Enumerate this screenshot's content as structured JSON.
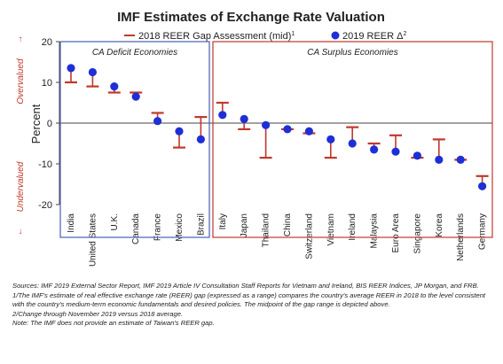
{
  "chart_data": {
    "type": "error-bar-scatter",
    "title": "IMF Estimates of Exchange Rate Valuation",
    "ylabel": "Percent",
    "ylim": [
      -20,
      20
    ],
    "yticks": [
      20,
      10,
      0,
      -10,
      -20
    ],
    "upper_side_label": "Overvalued",
    "lower_side_label": "Undervalued",
    "legend": {
      "gap_label": "2018 REER Gap Assessment (mid)",
      "gap_label_sup": "1",
      "reer_label": "2019 REER Δ",
      "reer_label_sup": "2"
    },
    "groups": [
      {
        "name": "CA Deficit Economies",
        "start": 0,
        "end": 6
      },
      {
        "name": "CA Surplus Economies",
        "start": 7,
        "end": 19
      }
    ],
    "categories": [
      "India",
      "United States",
      "U.K.",
      "Canada",
      "France",
      "Mexico",
      "Brazil",
      "Italy",
      "Japan",
      "Thailand",
      "China",
      "Switzerland",
      "Vietnam",
      "Ireland",
      "Malaysia",
      "Euro Area",
      "Singapore",
      "Korea",
      "Netherlands",
      "Germany"
    ],
    "gap_mid": [
      10,
      9,
      7.5,
      7.5,
      2.5,
      -6,
      1.5,
      5,
      -1.5,
      -8.5,
      -1.5,
      -2.5,
      -8.5,
      -1,
      -5,
      -3,
      -8.5,
      -4,
      -9,
      -13
    ],
    "reer_2019": [
      13.5,
      12.5,
      9,
      6.5,
      0.5,
      -2,
      -4,
      2,
      1,
      -0.5,
      -1.5,
      -2,
      -4,
      -5,
      -6.5,
      -7,
      -8,
      -9,
      -9,
      -15.5
    ]
  },
  "colors": {
    "gap": "#c0392b",
    "reer": "#1f2fd6",
    "deficit_box": "#4a5fb5",
    "surplus_box": "#c0392b",
    "side_label": "#c0392b"
  },
  "notes": [
    "Sources: IMF 2019 External Sector Report, IMF 2019 Article IV Consultation Staff Reports for Vietnam and Ireland, BIS REER Indices, JP Morgan, and FRB.",
    "1/The IMF's estimate of real effective exchange rate (REER) gap (expressed as a range) compares the country's average REER in 2018 to the level consistent with the country's medium-term economic fundamentals and desired policies. The midpoint of the gap range is depicted above.",
    "2/Change through November 2019 versus 2018 average.",
    "Note: The IMF does not provide an estimate of Taiwan's REER gap."
  ]
}
